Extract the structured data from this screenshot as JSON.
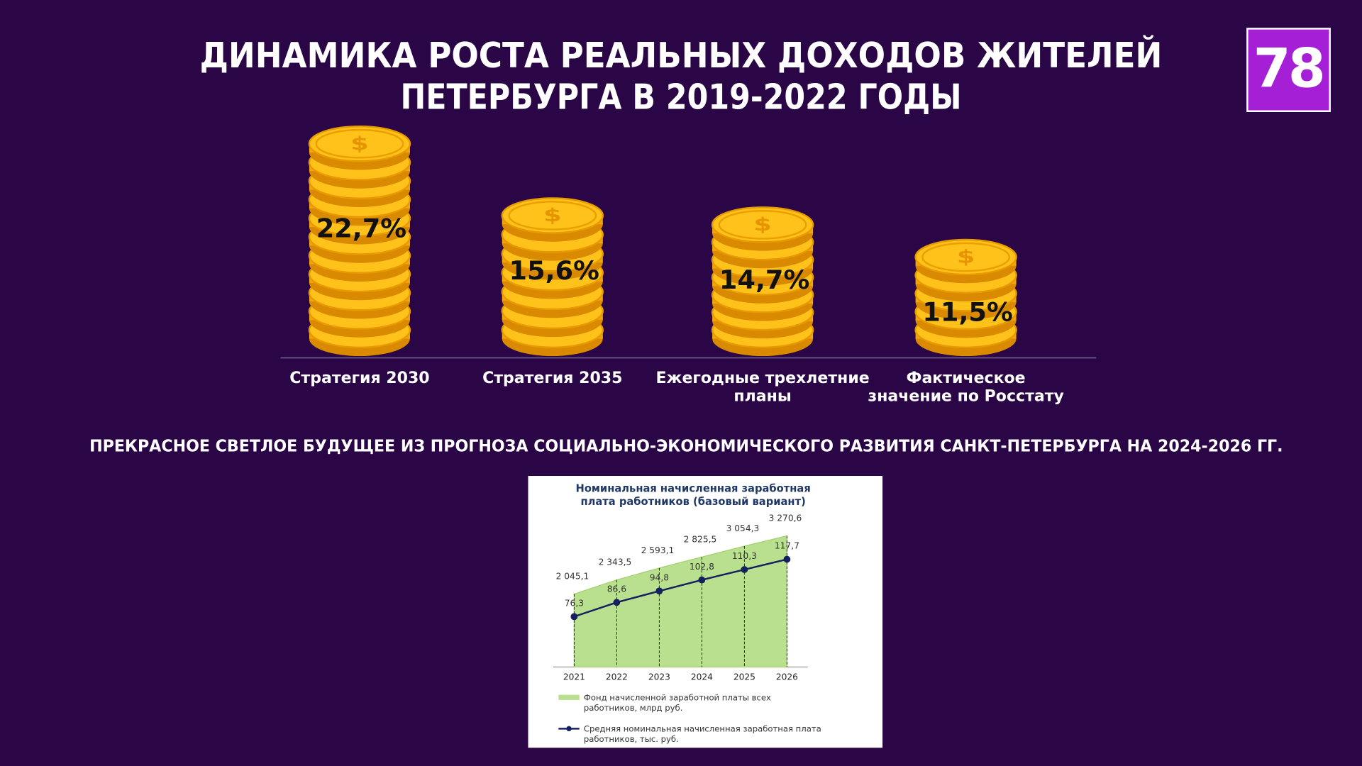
{
  "logo": "78",
  "section_heading": "ПРЕКРАСНОЕ СВЕТЛОЕ БУДУЩЕЕ ИЗ ПРОГНОЗА СОЦИАЛЬНО-ЭКОНОМИЧЕСКОГО РАЗВИТИЯ САНКТ-ПЕТЕРБУРГА НА 2024-2026 ГГ.",
  "chart_data": [
    {
      "type": "coins",
      "title": "ДИНАМИКА РОСТА РЕАЛЬНЫХ ДОХОДОВ ЖИТЕЛЕЙ\nПЕТЕРБУРГА В 2019-2022 ГОДЫ",
      "categories": [
        "Стратегия 2030",
        "Стратегия 2035",
        "Ежегодные трехлетние\nпланы",
        "Фактическое\nзначение по Росстату"
      ],
      "values": [
        22.7,
        15.6,
        14.7,
        11.5
      ],
      "value_labels": [
        "22,7%",
        "15,6%",
        "14,7%",
        "11,5%"
      ],
      "color": "#ffc21a"
    },
    {
      "type": "combo",
      "title": "Номинальная начисленная заработная\nплата работников (базовый вариант)",
      "categories": [
        "2021",
        "2022",
        "2023",
        "2024",
        "2025",
        "2026"
      ],
      "series": [
        {
          "name": "Фонд начисленной заработной платы всех\nработников, млрд руб.",
          "kind": "area",
          "color": "#b9e08e",
          "values": [
            2045.1,
            2343.5,
            2593.1,
            2825.5,
            3054.3,
            3270.6
          ],
          "value_labels": [
            "2 045,1",
            "2 343,5",
            "2 593,1",
            "2 825,5",
            "3 054,3",
            "3 270,6"
          ]
        },
        {
          "name": "Средняя номинальная начисленная заработная плата\nработников, тыс. руб.",
          "kind": "line",
          "color": "#14215e",
          "values": [
            76.3,
            86.6,
            94.8,
            102.8,
            110.3,
            117.7
          ],
          "value_labels": [
            "76,3",
            "86,6",
            "94,8",
            "102,8",
            "110,3",
            "117,7"
          ]
        }
      ]
    }
  ]
}
